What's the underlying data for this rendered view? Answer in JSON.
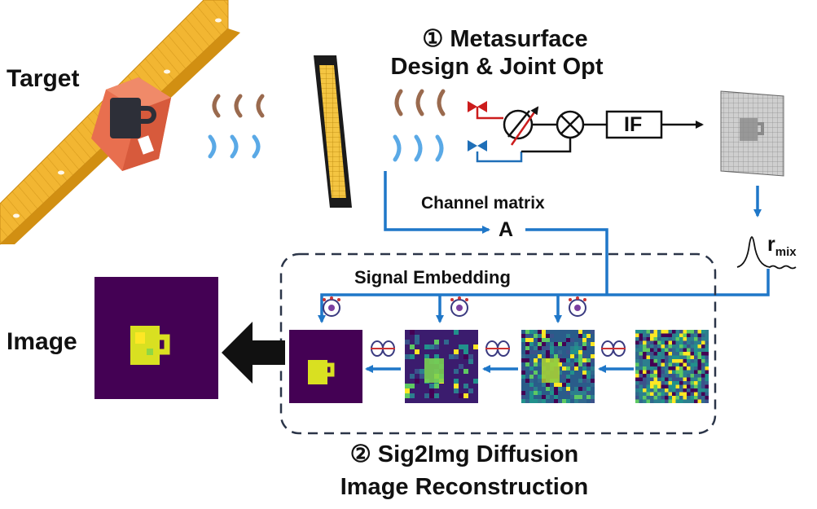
{
  "labels": {
    "target": "Target",
    "image": "Image",
    "metasurface_line1": "① Metasurface",
    "metasurface_line2": "Design & Joint Opt",
    "if_block": "IF",
    "channel_matrix": "Channel matrix",
    "channel_symbol": "A",
    "r_main": "r",
    "r_sub": "mix",
    "signal_embedding": "Signal Embedding",
    "diffusion_line1": "② Sig2Img Diffusion",
    "diffusion_line2": "Image Reconstruction"
  },
  "colors": {
    "flow_arrow": "#1f77c8",
    "conveyor": "#f2b632",
    "box": "#e86f4f",
    "mug": "#2d2f38",
    "wave_brown": "#9a6a4e",
    "wave_blue": "#5aa9e6",
    "viridis_dark": "#440154",
    "viridis_mid": "#21918c",
    "viridis_yellow": "#fde725",
    "dashed_border": "#2b3548"
  },
  "icons": [
    "conveyor-belt",
    "coffee-mug",
    "metasurface-panel",
    "antenna-tx",
    "antenna-rx",
    "phase-shifter",
    "mixer",
    "neural-network"
  ],
  "diffusion_steps": [
    "clean",
    "step-1",
    "step-2",
    "noise"
  ]
}
